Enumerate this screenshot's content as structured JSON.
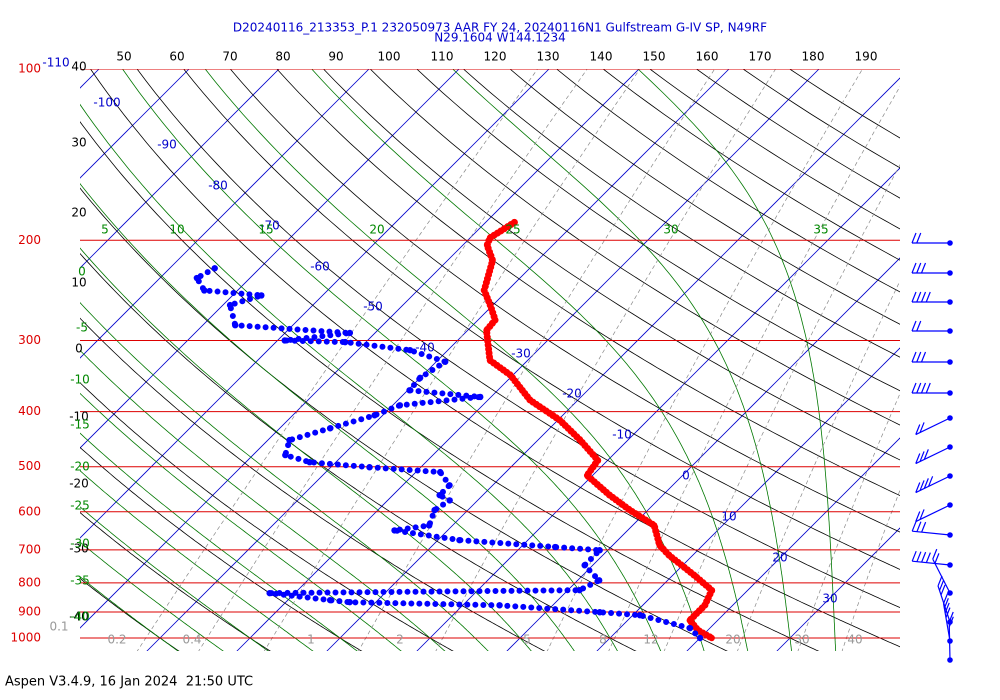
{
  "chart_data": {
    "type": "skewt",
    "title": "D20240116_213353_P.1 232050973 AAR FY 24, 20240116N1 Gulfstream G-IV SP, N49RF",
    "subtitle": "N29.1604 W144.1234",
    "footer": "Aspen V3.4.9, 16 Jan 2024  21:50 UTC",
    "ylog": true,
    "ylim": [
      1000,
      100
    ],
    "yticks": [
      100,
      200,
      300,
      400,
      500,
      600,
      700,
      800,
      900,
      1000
    ],
    "xticks": [
      -110,
      -100,
      -90,
      -80,
      -70,
      -60,
      -50,
      -40,
      -30,
      -20,
      -10,
      0,
      10,
      20,
      30
    ],
    "dry_adiabat_ticks": [
      -40,
      -30,
      -20,
      -10,
      0,
      10,
      20,
      30,
      40,
      50,
      60,
      70,
      80,
      90,
      100,
      110,
      120,
      130,
      140,
      150,
      160,
      170,
      180,
      190
    ],
    "moist_adiabat_ticks": [
      0,
      -5,
      -10,
      -15,
      -20,
      -25,
      -30,
      -35,
      -40,
      5,
      10,
      15,
      20,
      25,
      30,
      35
    ],
    "mixing_ratio_ticks": [
      0.1,
      0.2,
      0.4,
      1,
      2,
      5,
      8,
      12,
      20,
      30,
      40
    ],
    "series": [
      {
        "color": "#ff0000",
        "pressure": [
          186,
          198,
          204,
          217,
          245,
          260,
          276,
          288,
          325,
          345,
          382,
          414,
          449,
          487,
          518,
          561,
          596,
          634,
          687,
          716,
          776,
          824,
          876,
          931,
          969,
          1000
        ],
        "values": [
          -46.8,
          -47.8,
          -47.3,
          -45,
          -42.6,
          -40.3,
          -38.1,
          -37.9,
          -34.2,
          -30.3,
          -25.3,
          -19.8,
          -15.3,
          -11.1,
          -10.6,
          -5.9,
          -2,
          2.4,
          5.2,
          7.4,
          12.4,
          16,
          16.9,
          16.9,
          18.9,
          21.3
        ]
      },
      {
        "color": "#0000ff",
        "pressure": [
          224,
          233,
          245,
          250,
          260,
          282,
          291,
          300,
          302,
          312,
          327,
          349,
          367,
          377,
          390,
          406,
          428,
          449,
          477,
          491,
          501,
          511,
          539,
          561,
          573,
          596,
          634,
          647,
          673,
          692,
          701,
          745,
          792,
          824,
          834,
          858,
          865,
          876,
          901,
          912,
          961,
          1000
        ],
        "values": [
          -75,
          -75.9,
          -73.7,
          -66.8,
          -69.2,
          -66.4,
          -52.8,
          -59.2,
          -52.3,
          -44.2,
          -39,
          -40,
          -39.8,
          -31.2,
          -39.2,
          -40.9,
          -44.4,
          -47.6,
          -46.4,
          -42.9,
          -35.7,
          -27.3,
          -24.8,
          -24.8,
          -23.1,
          -23.7,
          -22.6,
          -25.9,
          -17.6,
          -6.2,
          -0.9,
          -0.9,
          2.4,
          1.3,
          -32.8,
          -25.3,
          -22.9,
          -5.9,
          6,
          10.8,
          17.8,
          20
        ]
      }
    ]
  }
}
